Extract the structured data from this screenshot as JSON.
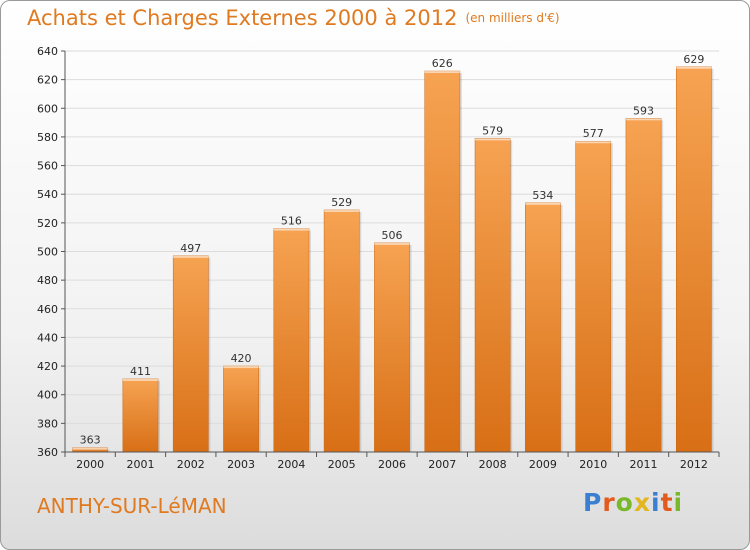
{
  "chart_data": {
    "type": "bar",
    "title": "Achats et Charges Externes 2000 à 2012",
    "subtitle": "(en milliers d'€)",
    "categories": [
      "2000",
      "2001",
      "2002",
      "2003",
      "2004",
      "2005",
      "2006",
      "2007",
      "2008",
      "2009",
      "2010",
      "2011",
      "2012"
    ],
    "values": [
      363,
      411,
      497,
      420,
      516,
      529,
      506,
      626,
      579,
      534,
      577,
      593,
      629
    ],
    "ylim": [
      360,
      640
    ],
    "yticks": [
      360,
      380,
      400,
      420,
      440,
      460,
      480,
      500,
      520,
      540,
      560,
      580,
      600,
      620,
      640
    ],
    "grid": true,
    "bar_color_top": "#f6a352",
    "bar_color_bottom": "#d86f16",
    "xlabel": "",
    "ylabel": ""
  },
  "footer": {
    "place": "ANTHY-SUR-LéMAN",
    "logo_text": "Proxiti",
    "logo_colors": [
      "#3a7fd0",
      "#e35a1e",
      "#79b829",
      "#e3b61e",
      "#3a7fd0",
      "#e35a1e",
      "#79b829"
    ]
  },
  "colors": {
    "title": "#e07a20",
    "grid": "#dcdcdc"
  }
}
